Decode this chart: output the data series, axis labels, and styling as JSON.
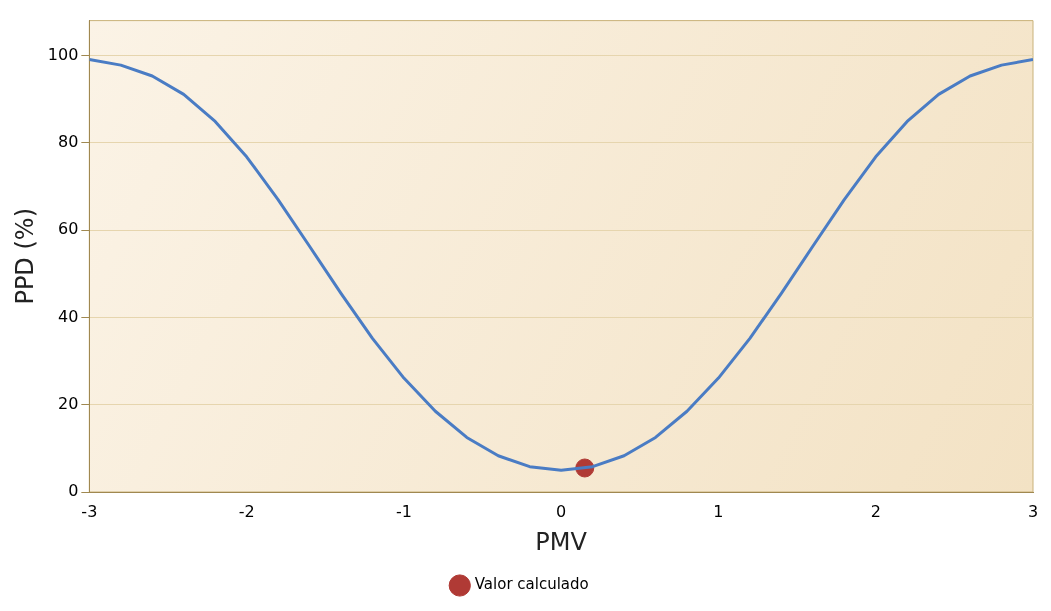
{
  "chart_data": {
    "type": "line",
    "xlabel": "PMV",
    "ylabel": "PPD (%)",
    "xlim": [
      -3,
      3
    ],
    "ylim": [
      0,
      108
    ],
    "xticks": [
      -3,
      -2,
      -1,
      0,
      1,
      2,
      3
    ],
    "yticks": [
      0,
      20,
      40,
      60,
      80,
      100
    ],
    "grid": "y",
    "legend": "bottom",
    "marker": "none",
    "series": [
      {
        "color": "#4a7cc4",
        "x": [
          -3,
          -2.8,
          -2.6,
          -2.4,
          -2.2,
          -2,
          -1.8,
          -1.6,
          -1.4,
          -1.2,
          -1,
          -0.8,
          -0.6,
          -0.4,
          -0.2,
          0,
          0.2,
          0.4,
          0.6,
          0.8,
          1,
          1.2,
          1.4,
          1.6,
          1.8,
          2,
          2.2,
          2.4,
          2.6,
          2.8,
          3
        ],
        "values": [
          99.1,
          97.8,
          95.3,
          91.1,
          84.9,
          76.8,
          67,
          56.3,
          45.5,
          35.2,
          26.1,
          18.5,
          12.5,
          8.3,
          5.8,
          5,
          5.8,
          8.3,
          12.5,
          18.5,
          26.1,
          35.2,
          45.5,
          56.3,
          67,
          76.8,
          84.9,
          91.1,
          95.3,
          97.8,
          99.1
        ]
      },
      {
        "type": "scatter",
        "name": "Valor calculado",
        "color": "#b03a35",
        "marker": "circle",
        "x": [
          0.15
        ],
        "values": [
          5.5
        ]
      }
    ]
  }
}
